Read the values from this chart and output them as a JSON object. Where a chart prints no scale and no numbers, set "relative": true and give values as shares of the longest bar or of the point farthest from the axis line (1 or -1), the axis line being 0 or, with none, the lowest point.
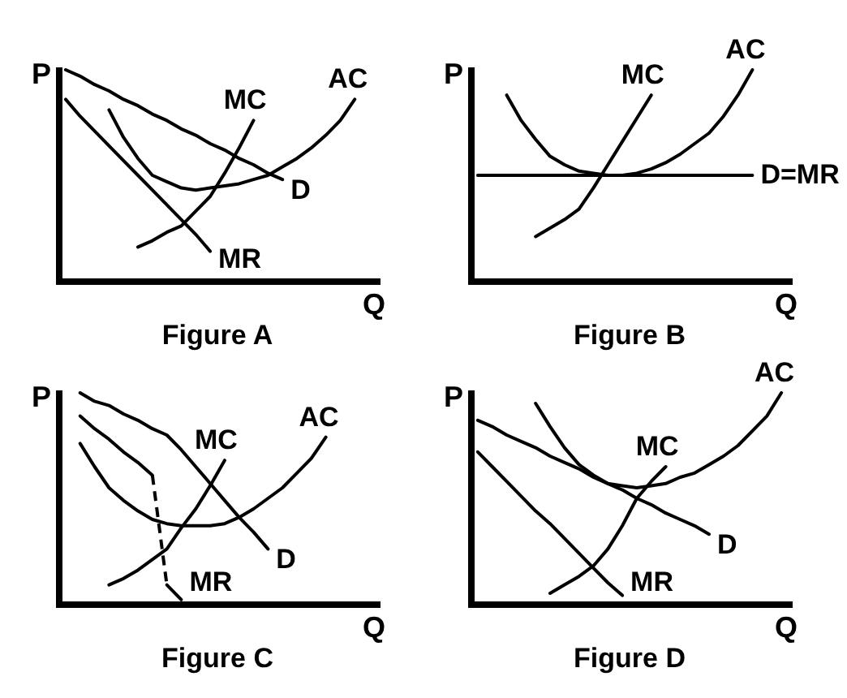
{
  "chart_data": [
    {
      "type": "line",
      "title": "Figure A",
      "xlabel": "Q",
      "ylabel": "P",
      "relative": true,
      "line_style": "solid",
      "categories": [
        null,
        null,
        null,
        null,
        null,
        null,
        null,
        null,
        null,
        null,
        null,
        null,
        null,
        null,
        null,
        null,
        null,
        null,
        null,
        null,
        null,
        null
      ],
      "series": [
        {
          "name": "D",
          "color": "#000000",
          "values": [
            1,
            0.97,
            0.93,
            0.9,
            0.86,
            0.83,
            0.79,
            0.76,
            0.72,
            0.69,
            0.65,
            0.62,
            0.58,
            0.55,
            0.51,
            0.48,
            null,
            null,
            null,
            null,
            null,
            null
          ]
        },
        {
          "name": "MR",
          "color": "#000000",
          "values": [
            0.86,
            0.78,
            0.71,
            0.64,
            0.57,
            0.5,
            0.43,
            0.36,
            0.29,
            0.22,
            0.14,
            null,
            null,
            null,
            null,
            null,
            null,
            null,
            null,
            null,
            null,
            null
          ]
        },
        {
          "name": "AC",
          "color": "#000000",
          "values": [
            null,
            null,
            null,
            0.81,
            0.68,
            0.58,
            0.5,
            0.47,
            0.44,
            0.43,
            0.44,
            0.45,
            0.46,
            0.48,
            0.5,
            0.54,
            0.58,
            0.63,
            0.69,
            0.76,
            0.86,
            null
          ]
        },
        {
          "name": "MC",
          "color": "#000000",
          "values": [
            null,
            null,
            null,
            null,
            null,
            0.16,
            0.19,
            0.23,
            0.26,
            0.33,
            0.4,
            0.51,
            0.63,
            0.76,
            null,
            null,
            null,
            null,
            null,
            null,
            null,
            null
          ]
        }
      ]
    },
    {
      "type": "line",
      "title": "Figure B",
      "xlabel": "Q",
      "ylabel": "P",
      "relative": true,
      "line_style": "solid",
      "categories": [
        null,
        null,
        null,
        null,
        null,
        null,
        null,
        null,
        null,
        null,
        null,
        null,
        null,
        null,
        null,
        null,
        null,
        null,
        null,
        null,
        null,
        null
      ],
      "series": [
        {
          "name": "D=MR",
          "color": "#000000",
          "values": [
            0.5,
            0.5,
            0.5,
            0.5,
            0.5,
            0.5,
            0.5,
            0.5,
            0.5,
            0.5,
            0.5,
            0.5,
            0.5,
            0.5,
            0.5,
            0.5,
            0.5,
            0.5,
            0.5,
            0.5,
            null,
            null
          ]
        },
        {
          "name": "AC",
          "color": "#000000",
          "values": [
            null,
            null,
            0.88,
            0.76,
            0.67,
            0.59,
            0.55,
            0.52,
            0.51,
            0.5,
            0.5,
            0.51,
            0.53,
            0.56,
            0.6,
            0.65,
            0.7,
            0.78,
            0.88,
            1,
            null,
            null
          ]
        },
        {
          "name": "MC",
          "color": "#000000",
          "values": [
            null,
            null,
            null,
            null,
            0.21,
            0.25,
            0.29,
            0.34,
            0.44,
            0.55,
            0.66,
            0.77,
            0.88,
            null,
            null,
            null,
            null,
            null,
            null,
            null,
            null,
            null
          ]
        }
      ]
    },
    {
      "type": "line",
      "title": "Figure C",
      "xlabel": "Q",
      "ylabel": "P",
      "relative": true,
      "line_style": "solid",
      "categories": [
        null,
        null,
        null,
        null,
        null,
        null,
        null,
        null,
        null,
        null,
        null,
        null,
        null,
        null,
        null,
        null,
        null,
        null,
        null,
        null,
        null,
        null
      ],
      "series": [
        {
          "name": "D",
          "color": "#000000",
          "values": [
            null,
            1,
            0.96,
            0.94,
            0.9,
            0.87,
            0.83,
            0.8,
            0.73,
            0.65,
            0.57,
            0.49,
            0.41,
            0.34,
            0.26,
            null,
            null,
            null,
            null,
            null,
            null,
            null
          ]
        },
        {
          "color": "#000000",
          "values": [
            null,
            0.89,
            0.83,
            0.78,
            0.72,
            0.67,
            0.61,
            null,
            null,
            null,
            null,
            null,
            null,
            null,
            null,
            null,
            null,
            null,
            null,
            null,
            null,
            null
          ]
        },
        {
          "color": "#000000",
          "line_style": "dashed",
          "values": [
            null,
            null,
            null,
            null,
            null,
            null,
            0.61,
            0.09,
            null,
            null,
            null,
            null,
            null,
            null,
            null,
            null,
            null,
            null,
            null,
            null,
            null,
            null
          ]
        },
        {
          "name": "MR",
          "color": "#000000",
          "values": [
            null,
            null,
            null,
            null,
            null,
            null,
            null,
            0.09,
            0.02,
            null,
            null,
            null,
            null,
            null,
            null,
            null,
            null,
            null,
            null,
            null,
            null,
            null
          ]
        },
        {
          "name": "AC",
          "color": "#000000",
          "values": [
            null,
            0.76,
            0.65,
            0.55,
            0.49,
            0.44,
            0.4,
            0.38,
            0.37,
            0.37,
            0.37,
            0.38,
            0.41,
            0.45,
            0.5,
            0.55,
            0.62,
            0.69,
            0.79,
            null,
            null,
            null
          ]
        },
        {
          "name": "MC",
          "color": "#000000",
          "values": [
            null,
            null,
            null,
            0.09,
            0.12,
            0.16,
            0.21,
            0.26,
            0.36,
            0.45,
            0.56,
            0.68,
            null,
            null,
            null,
            null,
            null,
            null,
            null,
            null,
            null,
            null
          ]
        }
      ]
    },
    {
      "type": "line",
      "title": "Figure D",
      "xlabel": "Q",
      "ylabel": "P",
      "relative": true,
      "line_style": "solid",
      "categories": [
        null,
        null,
        null,
        null,
        null,
        null,
        null,
        null,
        null,
        null,
        null,
        null,
        null,
        null,
        null,
        null,
        null,
        null,
        null,
        null,
        null,
        null
      ],
      "series": [
        {
          "name": "D",
          "color": "#000000",
          "values": [
            0.87,
            0.84,
            0.8,
            0.77,
            0.74,
            0.7,
            0.67,
            0.64,
            0.6,
            0.57,
            0.54,
            0.5,
            0.47,
            0.43,
            0.4,
            0.37,
            0.33,
            null,
            null,
            null,
            null,
            null
          ]
        },
        {
          "name": "MR",
          "color": "#000000",
          "values": [
            0.72,
            0.65,
            0.58,
            0.51,
            0.44,
            0.38,
            0.31,
            0.24,
            0.17,
            0.1,
            0.04,
            null,
            null,
            null,
            null,
            null,
            null,
            null,
            null,
            null,
            null,
            null
          ]
        },
        {
          "name": "AC",
          "color": "#000000",
          "values": [
            null,
            null,
            null,
            null,
            0.95,
            0.84,
            0.74,
            0.66,
            0.61,
            0.57,
            0.56,
            0.55,
            0.56,
            0.57,
            0.6,
            0.62,
            0.66,
            0.7,
            0.75,
            0.82,
            0.89,
            1
          ]
        },
        {
          "name": "MC",
          "color": "#000000",
          "values": [
            null,
            null,
            null,
            null,
            null,
            0.05,
            0.09,
            0.13,
            0.18,
            0.26,
            0.37,
            0.5,
            0.58,
            0.65,
            null,
            null,
            null,
            null,
            null,
            null,
            null,
            null
          ]
        }
      ]
    }
  ]
}
